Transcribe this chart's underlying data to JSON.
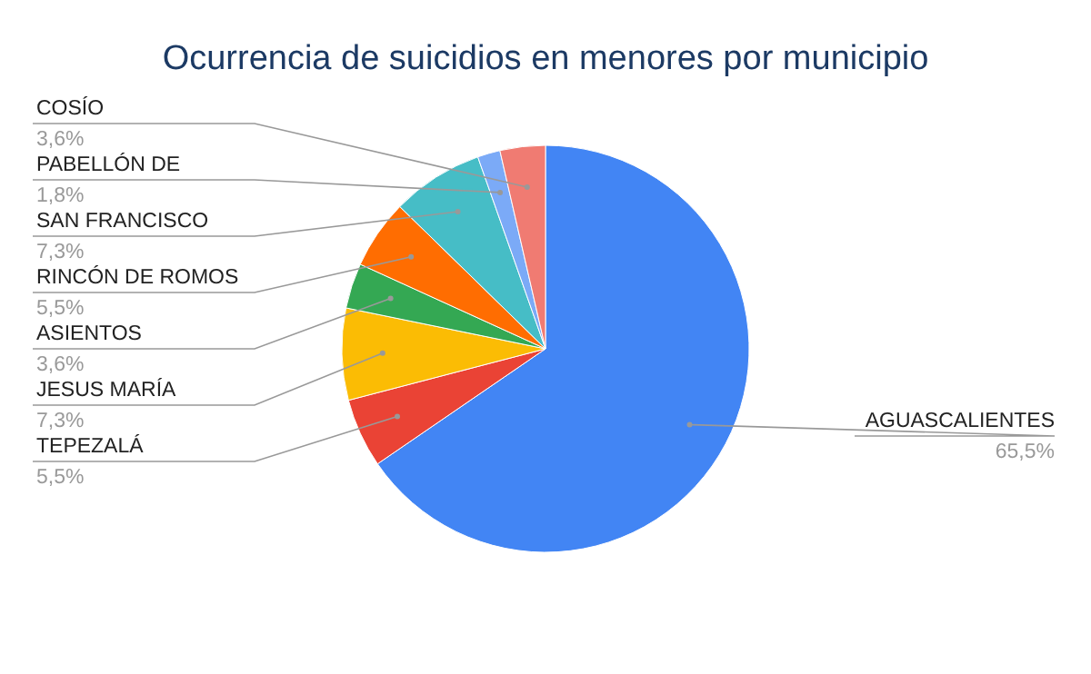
{
  "chart_data": {
    "type": "pie",
    "title": "Ocurrencia de suicidios en menores por municipio",
    "categories": [
      "AGUASCALIENTES",
      "TEPEZALÁ",
      "JESUS MARÍA",
      "ASIENTOS",
      "RINCÓN DE ROMOS",
      "SAN FRANCISCO",
      "PABELLÓN DE",
      "COSÍO"
    ],
    "values": [
      65.5,
      5.5,
      7.3,
      3.6,
      5.5,
      7.3,
      1.8,
      3.6
    ],
    "value_labels": [
      "65,5%",
      "5,5%",
      "7,3%",
      "3,6%",
      "5,5%",
      "7,3%",
      "1,8%",
      "3,6%"
    ],
    "colors": [
      "#4285f4",
      "#ea4335",
      "#fbbc04",
      "#34a853",
      "#ff6d01",
      "#46bdc6",
      "#7baaf7",
      "#f07b72"
    ]
  }
}
